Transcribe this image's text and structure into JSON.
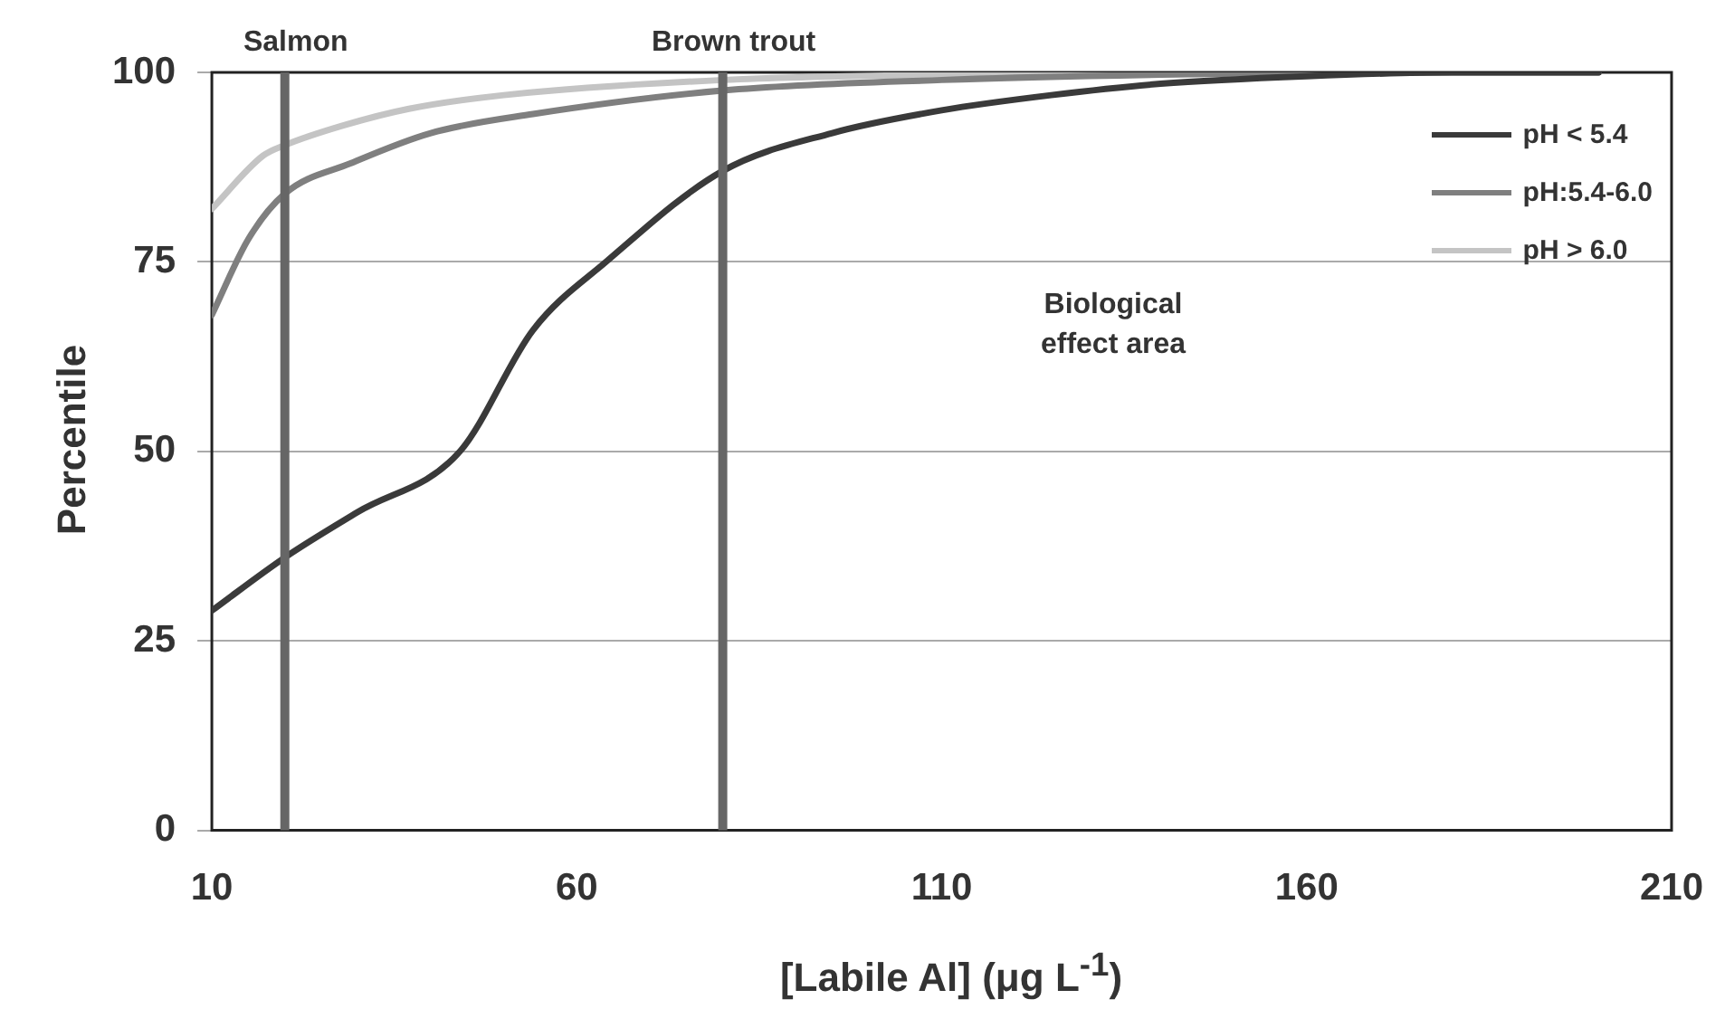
{
  "chart_data": {
    "type": "line",
    "xlabel": "[Labile Al] (μg L$^{-1}$)",
    "ylabel": "Percentile",
    "xlim": [
      10,
      210
    ],
    "xticks": [
      10,
      60,
      110,
      160,
      210
    ],
    "ylim": [
      0,
      100
    ],
    "yticks": [
      0,
      25,
      50,
      75,
      100
    ],
    "grid": "y",
    "legend": "top right",
    "marker": "none",
    "line_style": "solid",
    "series": [
      {
        "name": "pH < 5.4",
        "color": "#3a3a3a",
        "x": [
          10,
          20,
          30,
          44,
          54,
          64,
          80,
          95,
          110,
          125,
          140,
          160,
          180,
          200
        ],
        "values": [
          29,
          36,
          42,
          50,
          66,
          75,
          87,
          92,
          95,
          97,
          98.5,
          99.5,
          100,
          100
        ]
      },
      {
        "name": "pH:5.4-6.0",
        "color": "#7f7f7f",
        "x": [
          10,
          15,
          20,
          29,
          40,
          54,
          80,
          110,
          140,
          170,
          200
        ],
        "values": [
          68,
          78,
          84,
          88,
          92,
          94.5,
          97.6,
          99,
          99.7,
          100,
          100
        ]
      },
      {
        "name": "pH > 6.0",
        "color": "#c4c4c4",
        "x": [
          10,
          17,
          20,
          28,
          37,
          50,
          80,
          110,
          150,
          200
        ],
        "values": [
          82,
          89,
          90.4,
          93,
          95.2,
          97,
          99,
          99.7,
          100,
          100
        ]
      }
    ],
    "ref_lines": [
      {
        "axis": "x",
        "value": 20,
        "label": "Salmon",
        "color": "#666666"
      },
      {
        "axis": "x",
        "value": 80,
        "label": "Brown trout",
        "color": "#666666"
      }
    ],
    "annotations": [
      "Biological effect area"
    ]
  }
}
